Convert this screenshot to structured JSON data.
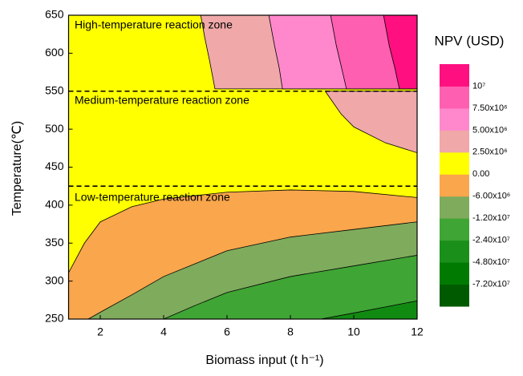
{
  "chart_data": {
    "type": "contour",
    "xlabel": "Biomass input (t h⁻¹)",
    "ylabel": "Temperature(℃)",
    "xlim": [
      1,
      12
    ],
    "ylim": [
      250,
      650
    ],
    "xticks": [
      2,
      4,
      6,
      8,
      10,
      12
    ],
    "yticks": [
      250,
      300,
      350,
      400,
      450,
      500,
      550,
      600,
      650
    ],
    "background": "#ffff00",
    "regions": [
      {
        "color": "#f9a64c",
        "x": [
          1,
          1,
          1.5,
          2,
          3,
          4,
          6,
          8,
          10,
          12,
          12
        ],
        "y": [
          250,
          311,
          350,
          378,
          398,
          408,
          417,
          420,
          418,
          410,
          250
        ]
      },
      {
        "color": "#7fab5c",
        "x": [
          1.62,
          2,
          3,
          4,
          6,
          8,
          10,
          12,
          12
        ],
        "y": [
          250,
          259,
          282,
          306,
          340,
          358,
          368,
          378,
          250
        ]
      },
      {
        "color": "#3fa535",
        "x": [
          4,
          5,
          6,
          8,
          10,
          12,
          12
        ],
        "y": [
          250,
          268,
          285,
          306,
          320,
          334,
          250
        ]
      },
      {
        "color": "#118a11",
        "x": [
          8.96,
          10,
          11,
          12,
          12
        ],
        "y": [
          250,
          258,
          266,
          274,
          250
        ]
      },
      {
        "color": "#f0a8a8",
        "x": [
          9.1,
          9.3,
          9.6,
          10,
          11,
          12,
          12
        ],
        "y": [
          550,
          538,
          520,
          503,
          482,
          469,
          550
        ]
      },
      {
        "color": "#f0a8a8",
        "x": [
          5.17,
          5.3,
          5.45,
          5.62,
          12,
          12
        ],
        "y": [
          650,
          620,
          590,
          553,
          553,
          650
        ]
      },
      {
        "color": "#ff88cc",
        "x": [
          7.32,
          7.5,
          7.65,
          7.75,
          12,
          12
        ],
        "y": [
          650,
          610,
          580,
          553,
          553,
          650
        ]
      },
      {
        "color": "#ff5fb0",
        "x": [
          9.27,
          9.45,
          9.62,
          9.77,
          12,
          12
        ],
        "y": [
          650,
          610,
          580,
          553,
          553,
          650
        ]
      },
      {
        "color": "#ff0f80",
        "x": [
          10.94,
          11.12,
          11.3,
          11.44,
          12,
          12
        ],
        "y": [
          650,
          610,
          580,
          553,
          553,
          650
        ]
      }
    ],
    "hlines": [
      550,
      425
    ],
    "annotations": [
      "High-temperature reaction zone",
      "Medium-temperature reaction zone",
      "Low-temperature reaction zone"
    ],
    "colorbar": {
      "title": "NPV (USD)",
      "colors": [
        "#005a00",
        "#007a00",
        "#1a8f1a",
        "#3fa535",
        "#7fab5c",
        "#f9a64c",
        "#ffff00",
        "#f0a8a8",
        "#ff88cc",
        "#ff5fb0",
        "#ff0f80"
      ],
      "levels": [
        {
          "value": -72000000,
          "label": "-7.20x10⁷"
        },
        {
          "value": -48000000,
          "label": "-4.80x10⁷"
        },
        {
          "value": -24000000,
          "label": "-2.40x10⁷"
        },
        {
          "value": -12000000,
          "label": "-1.20x10⁷"
        },
        {
          "value": -6000000,
          "label": "-6.00x10⁶"
        },
        {
          "value": 0,
          "label": "0.00"
        },
        {
          "value": 2500000,
          "label": "2.50x10⁶"
        },
        {
          "value": 5000000,
          "label": "5.00x10⁶"
        },
        {
          "value": 7500000,
          "label": "7.50x10⁶"
        },
        {
          "value": 10000000,
          "label": "10⁷"
        }
      ]
    }
  }
}
